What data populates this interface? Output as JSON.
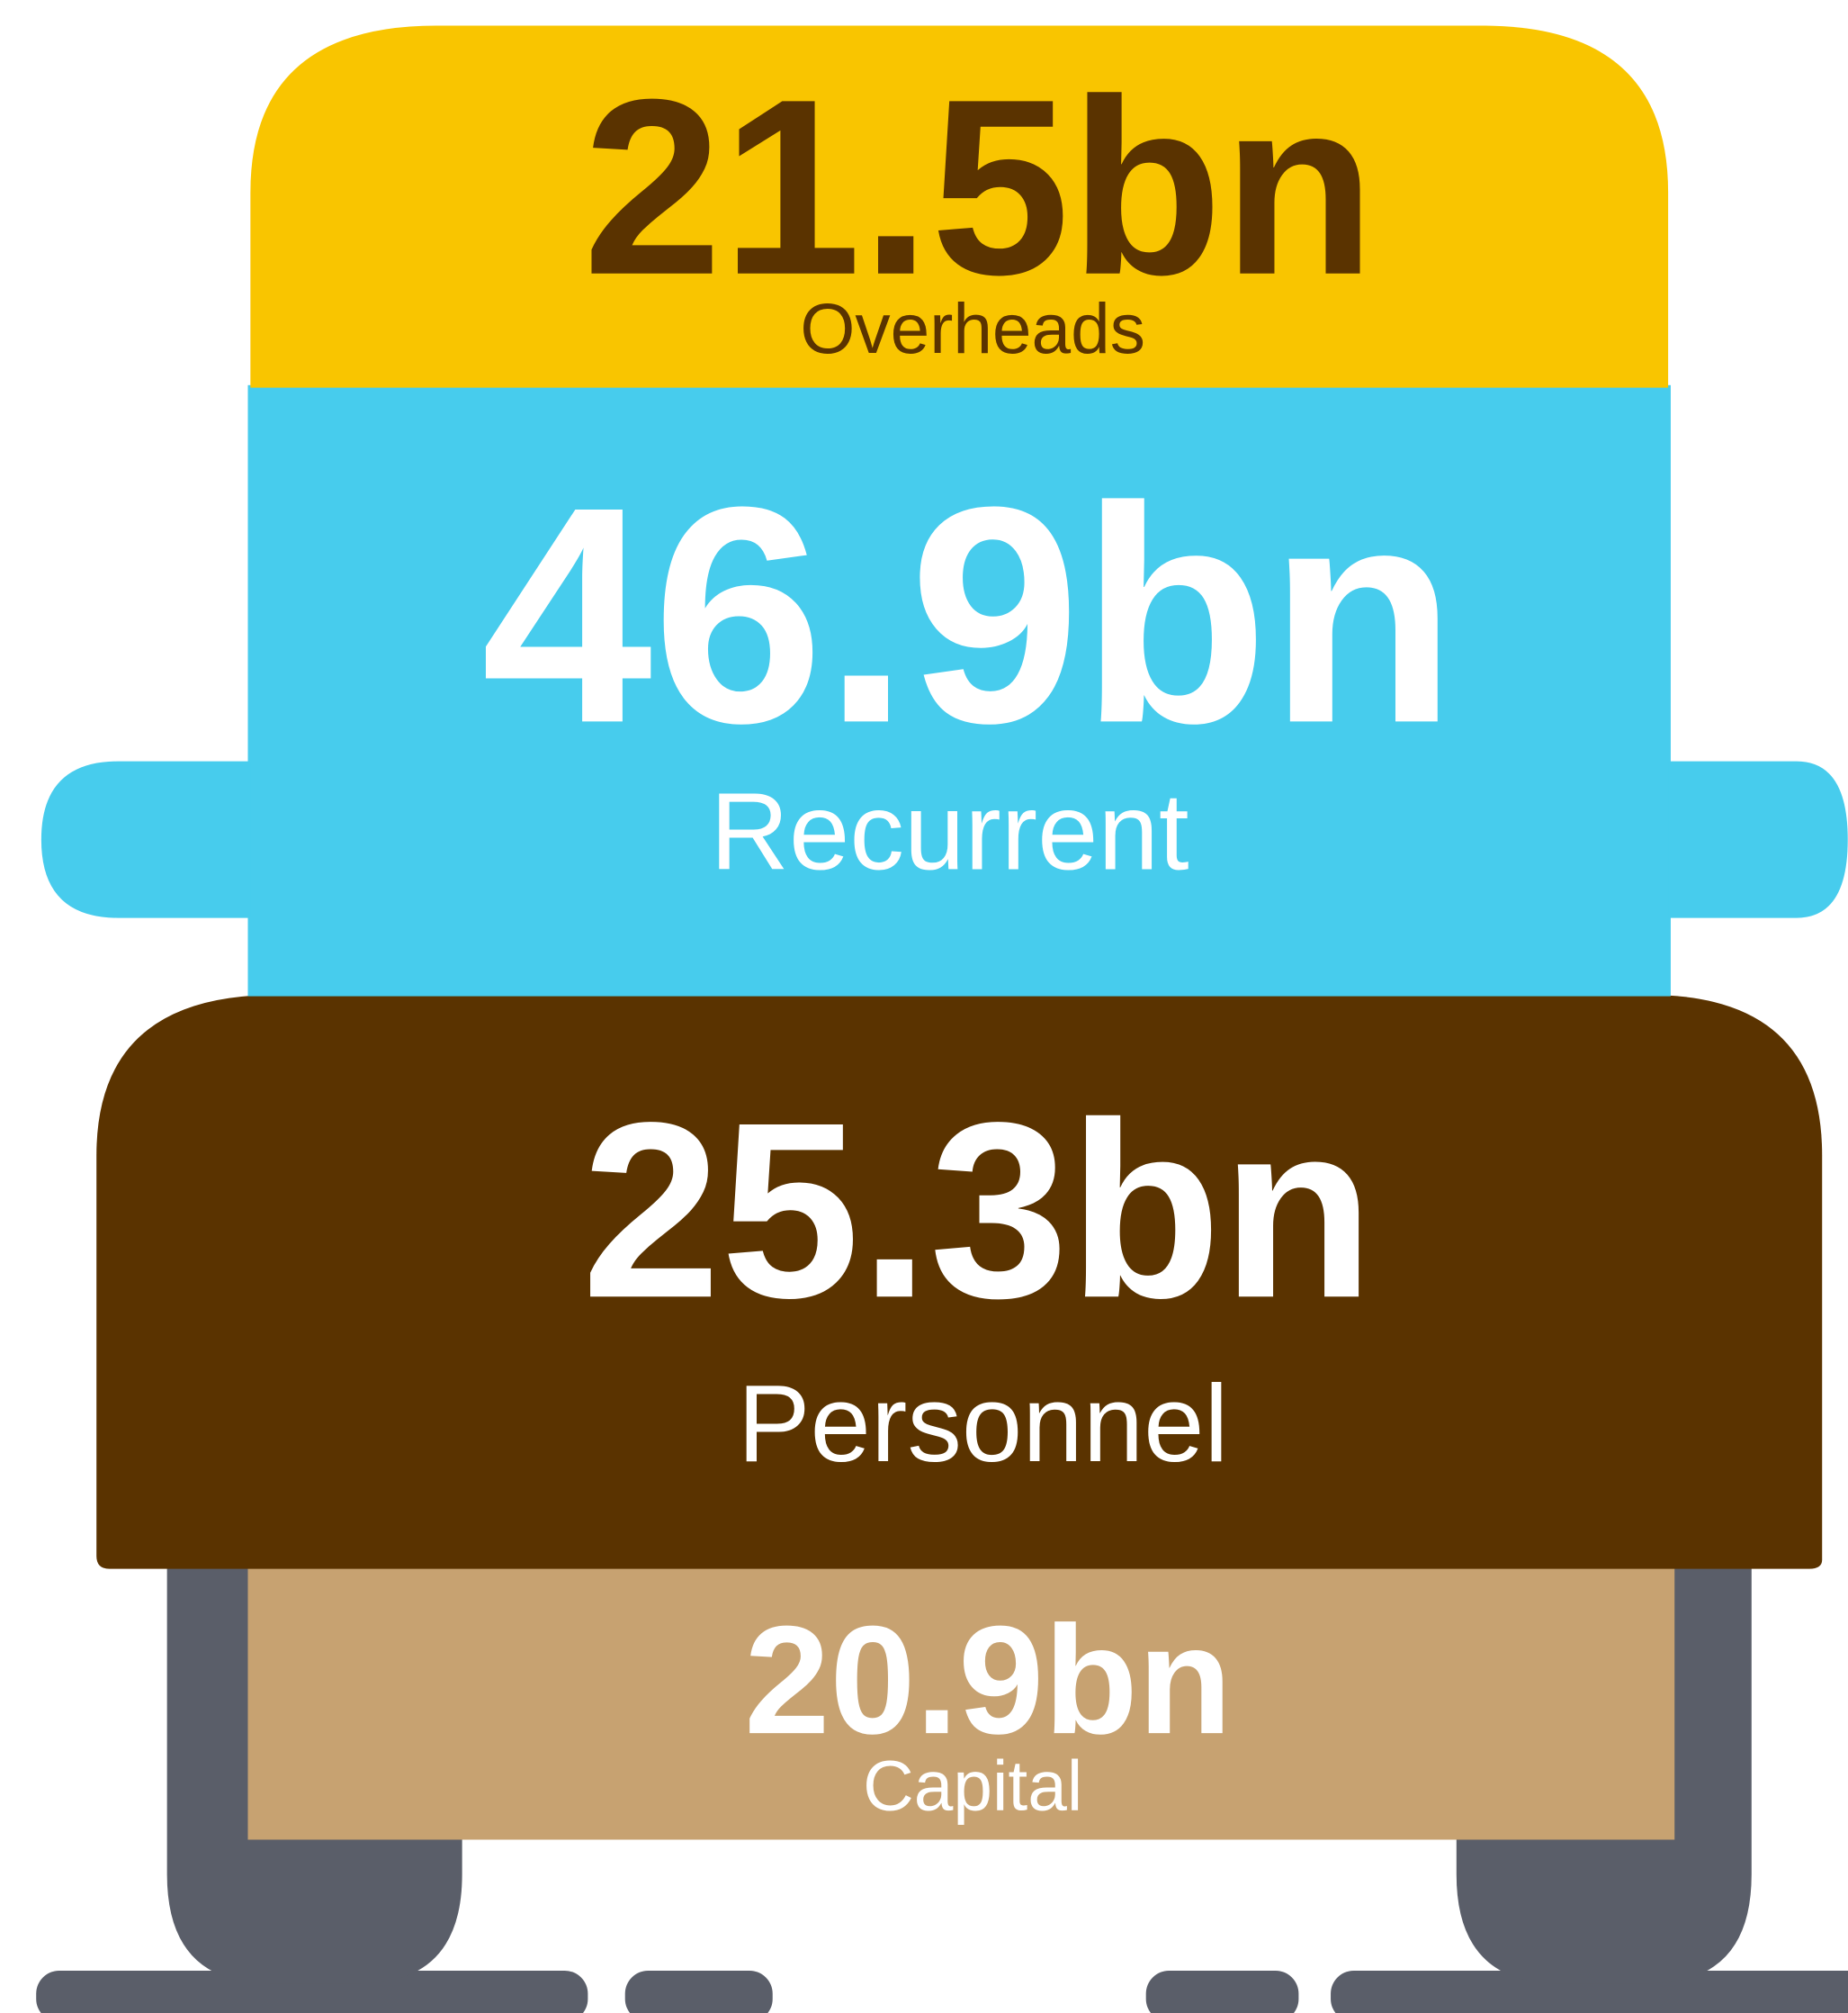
{
  "segments": [
    {
      "value": "21.5bn",
      "name": "Overheads"
    },
    {
      "value": "46.9bn",
      "name": "Recurrent"
    },
    {
      "value": "25.3bn",
      "name": "Personnel"
    },
    {
      "value": "20.9bn",
      "name": "Capital"
    }
  ]
}
